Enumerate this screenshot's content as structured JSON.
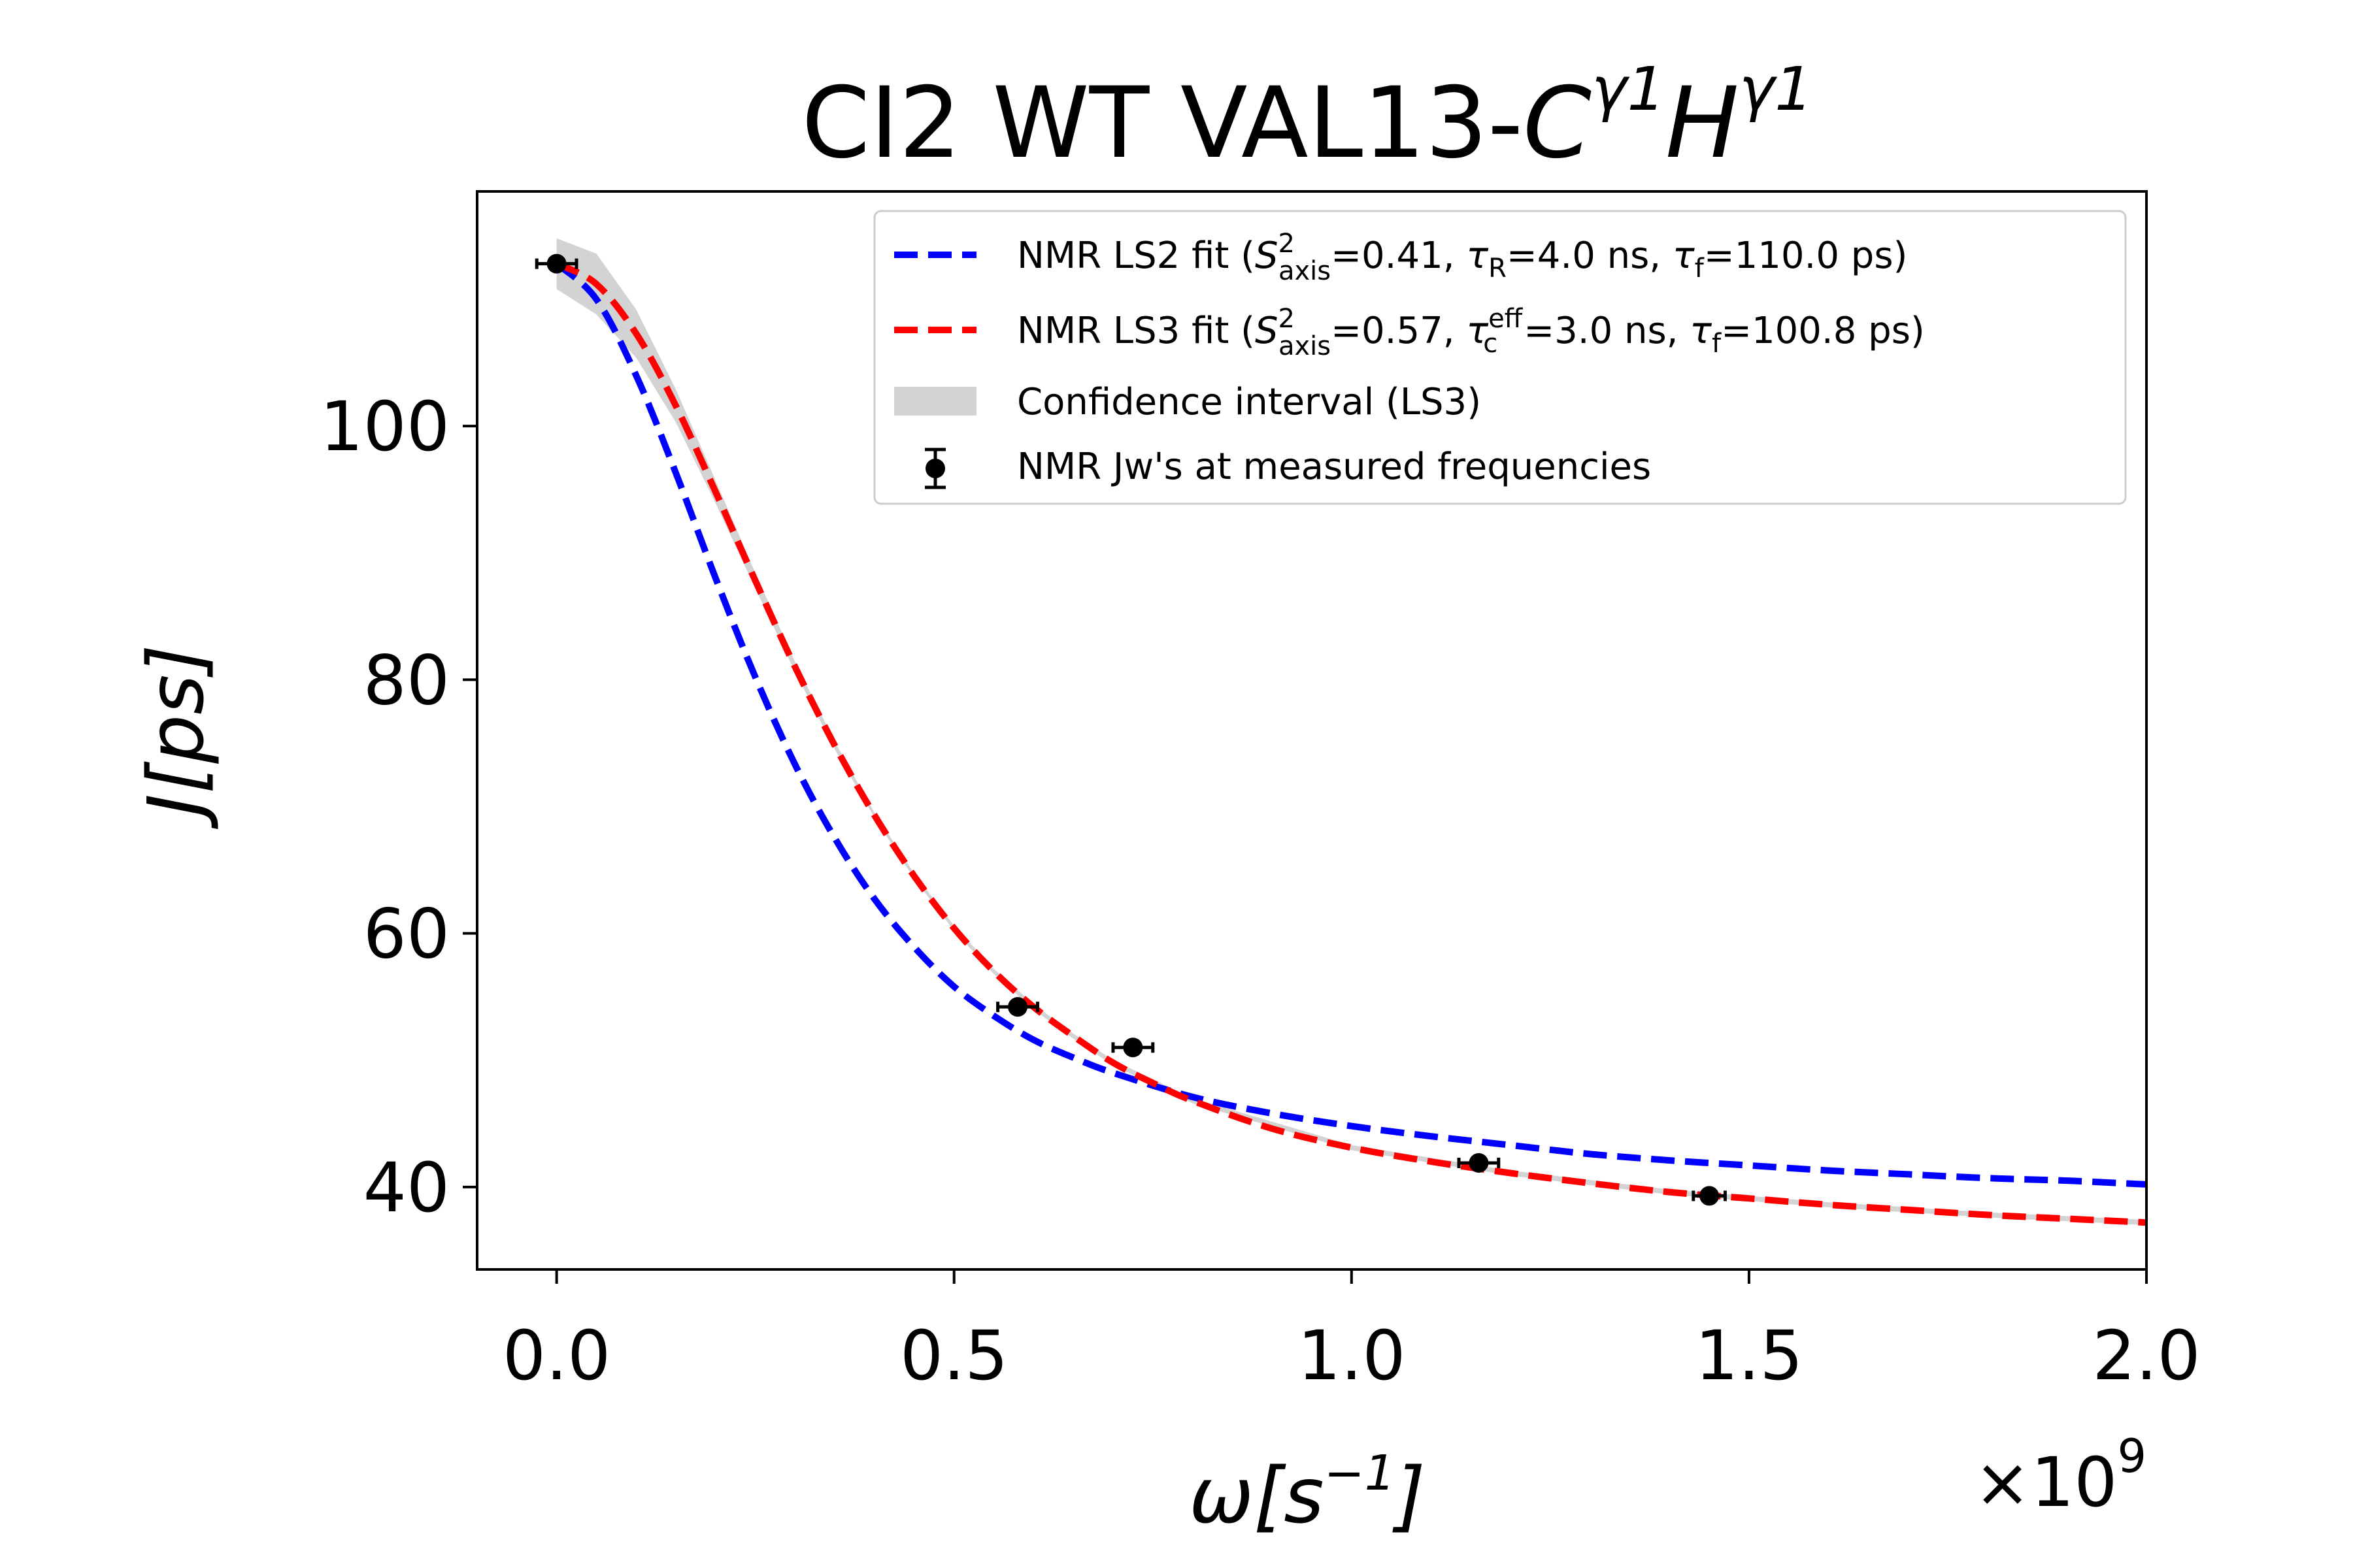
{
  "chart_data": {
    "type": "line",
    "title": {
      "prefix": "CI2 WT VAL13-",
      "c": "C",
      "c_sup": "γ1",
      "h": "H",
      "h_sup": "γ1"
    },
    "xlabel": {
      "base": "ω[s",
      "sup": "−1",
      "close": "]"
    },
    "ylabel": {
      "base": "J[ps]"
    },
    "x_multiplier": {
      "prefix": "×10",
      "sup": "9"
    },
    "xlim": [
      -0.1,
      2.0
    ],
    "ylim": [
      33.5,
      118.5
    ],
    "x_ticks": [
      0.0,
      0.5,
      1.0,
      1.5,
      2.0
    ],
    "x_tick_labels": [
      "0.0",
      "0.5",
      "1.0",
      "1.5",
      "2.0"
    ],
    "y_ticks": [
      40,
      60,
      80,
      100
    ],
    "y_tick_labels": [
      "40",
      "60",
      "80",
      "100"
    ],
    "grid": false,
    "legend_position": "top-right",
    "series": [
      {
        "name": "NMR LS2 fit",
        "legend": {
          "prefix": "NMR LS2 fit (",
          "s": "S",
          "s_sup": "2",
          "s_sub": "axis",
          "s_value": "=0.41, ",
          "t1": "τ",
          "t1_sub": "R",
          "t1_value": "=4.0 ns, ",
          "t2": "τ",
          "t2_sub": "f",
          "t2_value": "=110.0 ps)"
        },
        "color": "#0000ff",
        "style": "dashed",
        "points": [
          [
            0.0,
            112.8
          ],
          [
            0.05,
            110.0
          ],
          [
            0.1,
            104.0
          ],
          [
            0.15,
            96.3
          ],
          [
            0.2,
            88.0
          ],
          [
            0.25,
            80.2
          ],
          [
            0.3,
            73.3
          ],
          [
            0.35,
            67.5
          ],
          [
            0.4,
            62.7
          ],
          [
            0.45,
            58.9
          ],
          [
            0.5,
            55.8
          ],
          [
            0.55,
            53.5
          ],
          [
            0.6,
            51.6
          ],
          [
            0.65,
            50.2
          ],
          [
            0.7,
            49.0
          ],
          [
            0.8,
            47.1
          ],
          [
            0.9,
            45.8
          ],
          [
            1.0,
            44.8
          ],
          [
            1.1,
            44.0
          ],
          [
            1.2,
            43.3
          ],
          [
            1.3,
            42.6
          ],
          [
            1.4,
            42.1
          ],
          [
            1.5,
            41.7
          ],
          [
            1.6,
            41.3
          ],
          [
            1.7,
            41.0
          ],
          [
            1.8,
            40.7
          ],
          [
            1.9,
            40.5
          ],
          [
            2.0,
            40.2
          ]
        ]
      },
      {
        "name": "NMR LS3 fit",
        "legend": {
          "prefix": "NMR LS3 fit (",
          "s": "S",
          "s_sup": "2",
          "s_sub": "axis",
          "s_value": "=0.57, ",
          "t1": "τ",
          "t1_sup": "eff",
          "t1_sub": "c",
          "t1_value": "=3.0 ns, ",
          "t2": "τ",
          "t2_sub": "f",
          "t2_value": "=100.8 ps)"
        },
        "color": "#ff0000",
        "style": "dashed",
        "points": [
          [
            0.0,
            112.8
          ],
          [
            0.05,
            111.2
          ],
          [
            0.1,
            107.3
          ],
          [
            0.15,
            101.6
          ],
          [
            0.2,
            94.8
          ],
          [
            0.25,
            87.8
          ],
          [
            0.3,
            81.0
          ],
          [
            0.35,
            74.8
          ],
          [
            0.4,
            69.3
          ],
          [
            0.45,
            64.5
          ],
          [
            0.5,
            60.4
          ],
          [
            0.55,
            57.0
          ],
          [
            0.6,
            54.2
          ],
          [
            0.65,
            51.9
          ],
          [
            0.7,
            49.8
          ],
          [
            0.75,
            48.2
          ],
          [
            0.8,
            46.8
          ],
          [
            0.9,
            44.6
          ],
          [
            1.0,
            43.1
          ],
          [
            1.1,
            42.0
          ],
          [
            1.2,
            41.1
          ],
          [
            1.3,
            40.3
          ],
          [
            1.4,
            39.6
          ],
          [
            1.5,
            39.1
          ],
          [
            1.6,
            38.6
          ],
          [
            1.7,
            38.2
          ],
          [
            1.8,
            37.8
          ],
          [
            1.9,
            37.5
          ],
          [
            2.0,
            37.2
          ]
        ]
      }
    ],
    "band": {
      "name": "Confidence interval (LS3)",
      "color": "#d3d3d3",
      "upper": [
        [
          0.0,
          114.8
        ],
        [
          0.05,
          113.6
        ],
        [
          0.1,
          109.2
        ],
        [
          0.15,
          102.9
        ],
        [
          0.2,
          95.7
        ],
        [
          0.25,
          88.4
        ],
        [
          0.3,
          81.4
        ],
        [
          0.35,
          75.1
        ],
        [
          0.4,
          69.5
        ],
        [
          0.45,
          64.7
        ],
        [
          0.5,
          60.6
        ],
        [
          0.55,
          57.2
        ],
        [
          0.6,
          54.4
        ],
        [
          0.65,
          52.1
        ],
        [
          0.7,
          50.0
        ],
        [
          0.8,
          47.0
        ],
        [
          1.0,
          43.3
        ],
        [
          1.2,
          41.3
        ],
        [
          1.4,
          39.8
        ],
        [
          1.6,
          38.8
        ],
        [
          1.8,
          38.0
        ],
        [
          2.0,
          37.4
        ]
      ],
      "lower": [
        [
          2.0,
          37.0
        ],
        [
          1.8,
          37.6
        ],
        [
          1.6,
          38.4
        ],
        [
          1.4,
          39.4
        ],
        [
          1.2,
          40.9
        ],
        [
          1.0,
          42.9
        ],
        [
          0.8,
          46.6
        ],
        [
          0.7,
          49.6
        ],
        [
          0.65,
          51.7
        ],
        [
          0.6,
          54.0
        ],
        [
          0.55,
          56.8
        ],
        [
          0.5,
          60.2
        ],
        [
          0.45,
          64.3
        ],
        [
          0.4,
          69.1
        ],
        [
          0.35,
          74.5
        ],
        [
          0.3,
          80.6
        ],
        [
          0.25,
          87.2
        ],
        [
          0.2,
          93.9
        ],
        [
          0.15,
          100.3
        ],
        [
          0.1,
          105.4
        ],
        [
          0.05,
          108.8
        ],
        [
          0.0,
          110.8
        ]
      ]
    },
    "measurements": {
      "name": "NMR Jw's at measured frequencies",
      "color": "#000000",
      "points": [
        {
          "x": 0.0,
          "y": 112.8,
          "xerr": 0.025
        },
        {
          "x": 0.58,
          "y": 54.2,
          "xerr": 0.025
        },
        {
          "x": 0.725,
          "y": 51.0,
          "xerr": 0.025
        },
        {
          "x": 1.16,
          "y": 41.9,
          "xerr": 0.025
        },
        {
          "x": 1.45,
          "y": 39.3,
          "xerr": 0.02
        }
      ]
    }
  }
}
